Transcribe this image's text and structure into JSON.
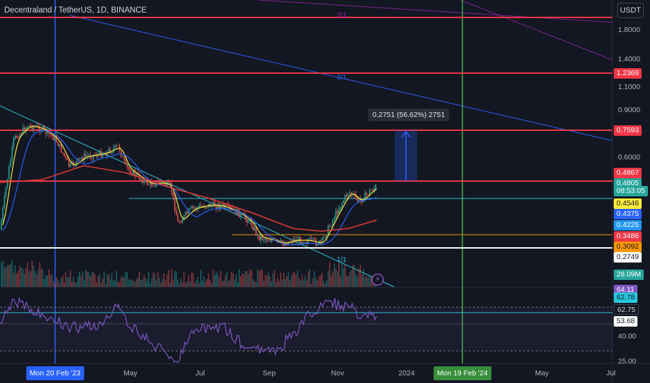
{
  "symbol": {
    "title": "Decentraland / TetherUS, 1D, BINANCE"
  },
  "currency_button": "USDT",
  "price_axis_ticks": [
    "1.8000",
    "1.4000",
    "1.1000",
    "0.9000",
    "0.6000"
  ],
  "rsi_axis_ticks": [
    "40.00",
    "25.00"
  ],
  "price_badges": [
    {
      "label": "1.2369",
      "bg": "#f23645",
      "fg": "#ffffff"
    },
    {
      "label": "0.7593",
      "bg": "#f23645",
      "fg": "#ffffff"
    },
    {
      "label": "0.4867",
      "bg": "#f23645",
      "fg": "#ffffff"
    },
    {
      "label": "0.4805",
      "bg": "#26a69a",
      "fg": "#ffffff"
    },
    {
      "label": "08:53:05",
      "bg": "#26a69a",
      "fg": "#ffffff"
    },
    {
      "label": "0.4546",
      "bg": "#ffeb3b",
      "fg": "#131722"
    },
    {
      "label": "0.4375",
      "bg": "#2962ff",
      "fg": "#ffffff"
    },
    {
      "label": "0.4225",
      "bg": "#2196f3",
      "fg": "#ffffff"
    },
    {
      "label": "0.3486",
      "bg": "#f23645",
      "fg": "#ffffff"
    },
    {
      "label": "0.3092",
      "bg": "#ff9800",
      "fg": "#131722"
    },
    {
      "label": "0.2749",
      "bg": "#ffffff",
      "fg": "#131722"
    },
    {
      "label": "28.09M",
      "bg": "#26a69a",
      "fg": "#ffffff"
    },
    {
      "label": "64.11",
      "bg": "#7e57c2",
      "fg": "#ffffff"
    },
    {
      "label": "62.78",
      "bg": "#26c6da",
      "fg": "#131722"
    },
    {
      "label": "62.75",
      "bg": "#131722",
      "fg": "#d1d4dc"
    },
    {
      "label": "53.68",
      "bg": "#ffffff",
      "fg": "#131722"
    }
  ],
  "time_axis": [
    "May",
    "Jul",
    "Sep",
    "Nov",
    "2024",
    "May",
    "Jul"
  ],
  "time_badges": [
    {
      "label": "Mon 20 Feb '23",
      "bg": "#2962ff"
    },
    {
      "label": "Mon 19 Feb '24",
      "bg": "#388e3c"
    }
  ],
  "measure_label": "0.2751 (56.62%) 2751",
  "fan_labels": [
    "2/1",
    "2/1",
    "1/1"
  ],
  "colors": {
    "background": "#131722",
    "up": "#26a69a",
    "down": "#ef5350",
    "ema_red": "#e53935",
    "ema_blue": "#2962ff",
    "rsi": "#7e57c2",
    "grid": "#2a2e39"
  }
}
